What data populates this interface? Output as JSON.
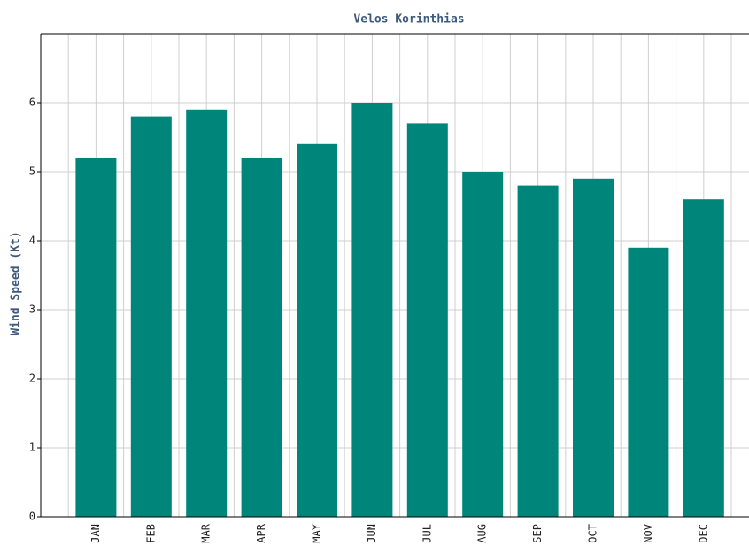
{
  "chart_data": {
    "type": "bar",
    "title": "Velos Korinthias",
    "ylabel": "Wind Speed (Kt)",
    "categories": [
      "JAN",
      "FEB",
      "MAR",
      "APR",
      "MAY",
      "JUN",
      "JUL",
      "AUG",
      "SEP",
      "OCT",
      "NOV",
      "DEC"
    ],
    "values": [
      5.2,
      5.8,
      5.9,
      5.2,
      5.4,
      6.0,
      5.7,
      5.0,
      4.8,
      4.9,
      3.9,
      4.6
    ],
    "color": "#00857a",
    "ylim": [
      0,
      7
    ],
    "yticks": [
      0,
      1,
      2,
      3,
      4,
      5,
      6
    ],
    "grid": true
  }
}
